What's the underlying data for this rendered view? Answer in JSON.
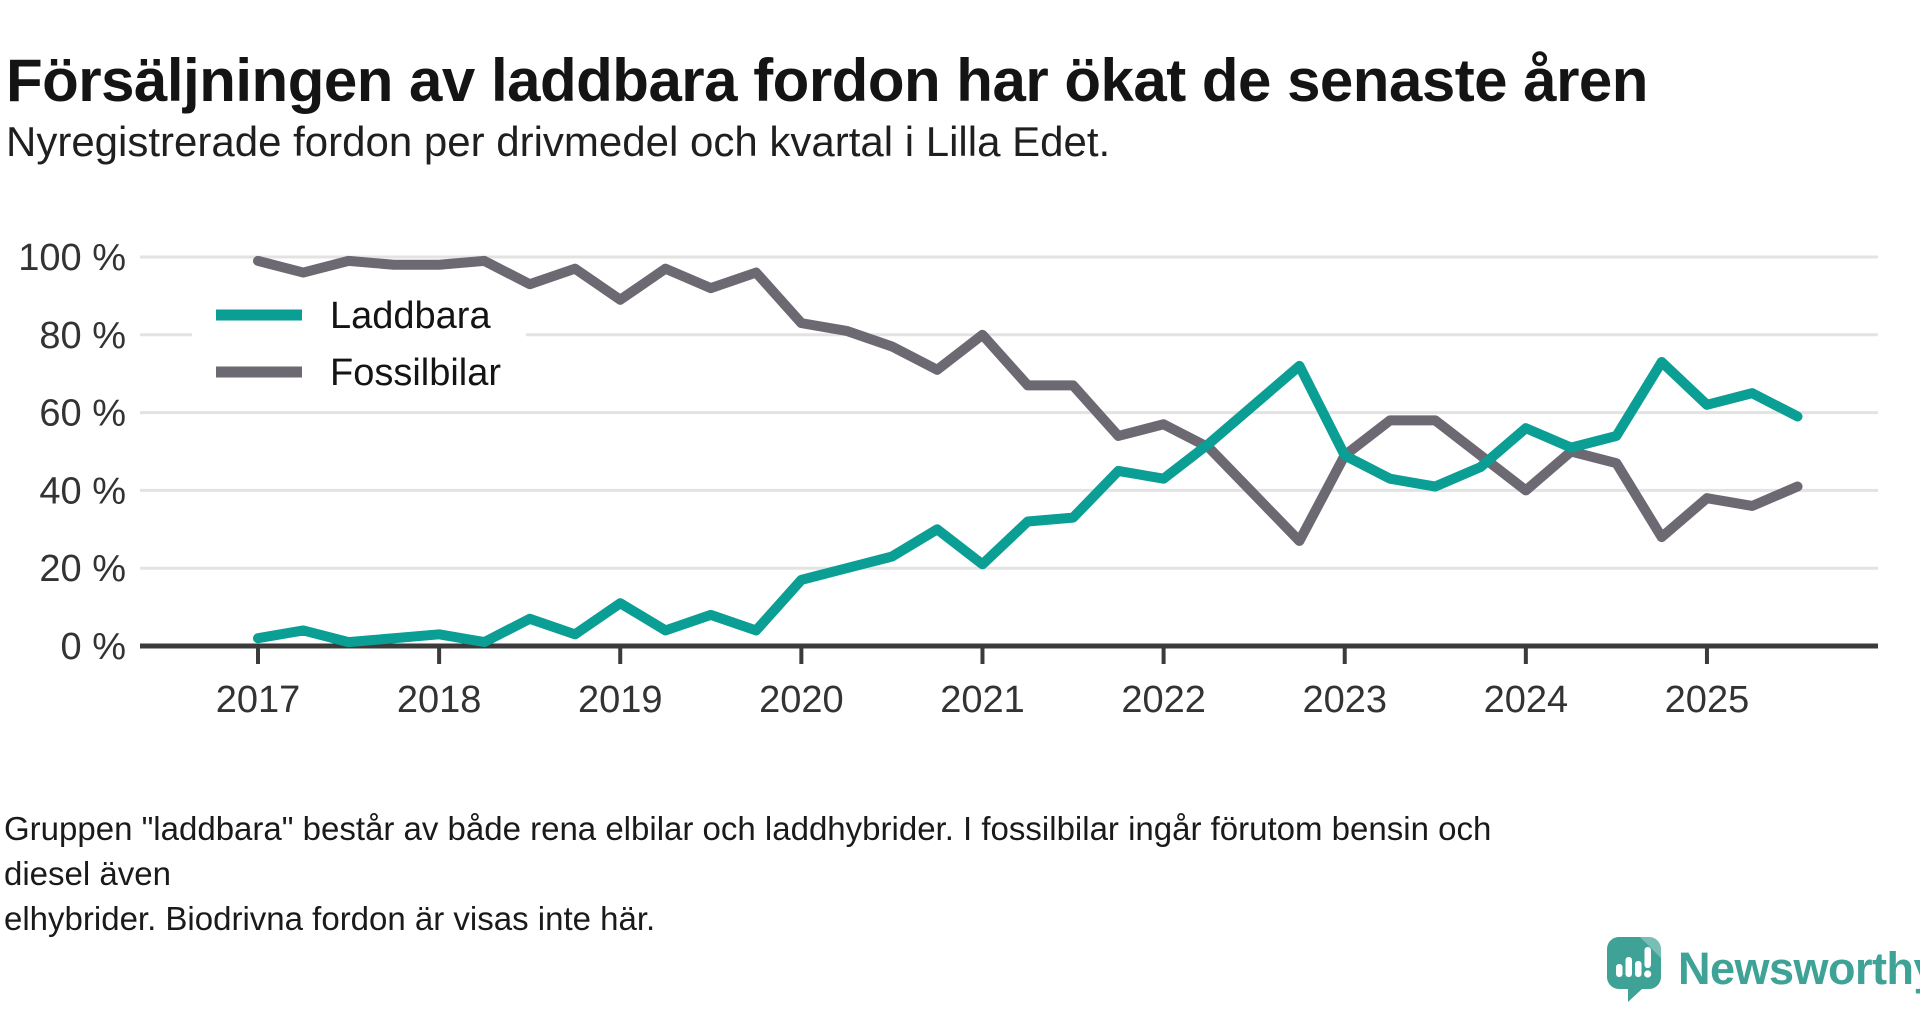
{
  "header": {
    "title": "Försäljningen av laddbara fordon har ökat de senaste åren",
    "subtitle": "Nyregistrerade fordon per drivmedel och kvartal i Lilla Edet."
  },
  "chart_data": {
    "type": "line",
    "title": "Försäljningen av laddbara fordon har ökat de senaste åren",
    "subtitle": "Nyregistrerade fordon per drivmedel och kvartal i Lilla Edet.",
    "x_unit": "quarter",
    "quarters": [
      "2017 Q1",
      "2017 Q2",
      "2017 Q3",
      "2017 Q4",
      "2018 Q1",
      "2018 Q2",
      "2018 Q3",
      "2018 Q4",
      "2019 Q1",
      "2019 Q2",
      "2019 Q3",
      "2019 Q4",
      "2020 Q1",
      "2020 Q2",
      "2020 Q3",
      "2020 Q4",
      "2021 Q1",
      "2021 Q2",
      "2021 Q3",
      "2021 Q4",
      "2022 Q1",
      "2022 Q2",
      "2022 Q3",
      "2022 Q4",
      "2023 Q1",
      "2023 Q2",
      "2023 Q3",
      "2023 Q4",
      "2024 Q1",
      "2024 Q2",
      "2024 Q3",
      "2024 Q4",
      "2025 Q1",
      "2025 Q2",
      "2025 Q3"
    ],
    "x_tick_labels": [
      "2017",
      "2018",
      "2019",
      "2020",
      "2021",
      "2022",
      "2023",
      "2024",
      "2025"
    ],
    "y_tick_labels": [
      "0 %",
      "20 %",
      "40 %",
      "60 %",
      "80 %",
      "100 %"
    ],
    "ylim": [
      0,
      100
    ],
    "grid": true,
    "legend_position": "top-left-inside",
    "series": [
      {
        "name": "Laddbara",
        "color": "#0a9e94",
        "values": [
          2,
          4,
          1,
          2,
          3,
          1,
          7,
          3,
          11,
          4,
          8,
          4,
          17,
          20,
          23,
          30,
          21,
          32,
          33,
          45,
          43,
          52,
          62,
          72,
          49,
          43,
          41,
          46,
          56,
          51,
          54,
          73,
          62,
          65,
          59
        ]
      },
      {
        "name": "Fossilbilar",
        "color": "#6d6973",
        "values": [
          99,
          96,
          99,
          98,
          98,
          99,
          93,
          97,
          89,
          97,
          92,
          96,
          83,
          81,
          77,
          71,
          80,
          67,
          67,
          54,
          57,
          51,
          39,
          27,
          49,
          58,
          58,
          49,
          40,
          50,
          47,
          28,
          38,
          36,
          41
        ]
      }
    ],
    "style": {
      "grid_color": "#e3e3e3",
      "axis_color": "#3b3b3b",
      "label_color": "#333333",
      "legend_text_color": "#141414"
    }
  },
  "footnote": {
    "line1": "Gruppen \"laddbara\" består av både rena elbilar och laddhybrider. I fossilbilar ingår förutom bensin och diesel även",
    "line2": "elhybrider. Biodrivna fordon är visas inte här."
  },
  "logo": {
    "text": "Newsworthy",
    "color": "#3fa296"
  }
}
